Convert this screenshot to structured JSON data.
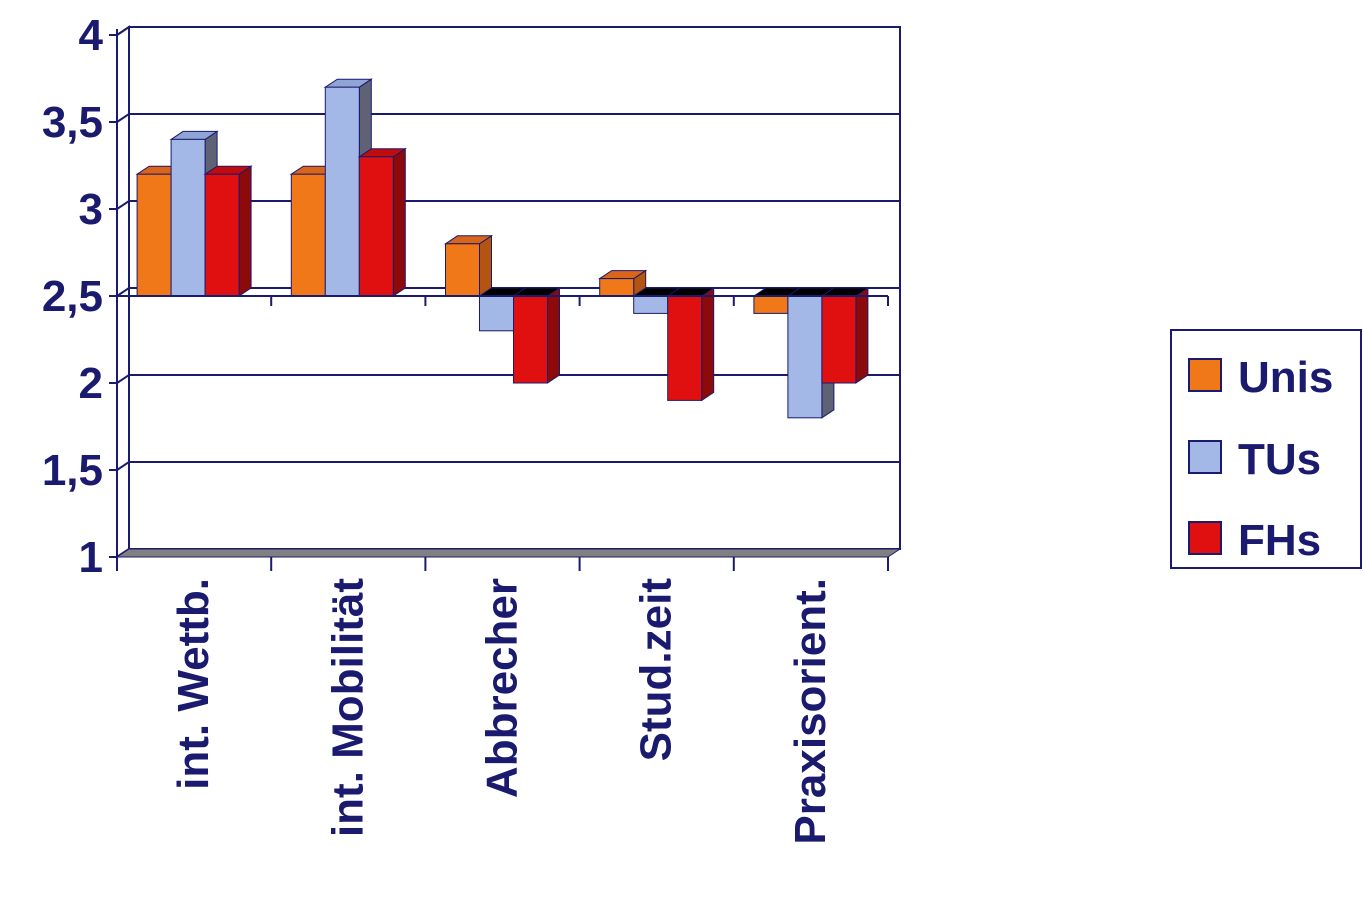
{
  "chart_data": {
    "type": "bar",
    "categories": [
      "int. Wettb.",
      "int. Mobilität",
      "Abbrecher",
      "Stud.zeit",
      "Praxisorient."
    ],
    "baseline": 2.5,
    "ylim": [
      1,
      4
    ],
    "yticks": [
      "1",
      "1,5",
      "2",
      "2,5",
      "3",
      "3,5",
      "4"
    ],
    "ytick_values": [
      1,
      1.5,
      2,
      2.5,
      3,
      3.5,
      4
    ],
    "series": [
      {
        "name": "Unis",
        "values": [
          3.2,
          3.2,
          2.8,
          2.6,
          2.4
        ],
        "color": "#f07818",
        "dark": "#b35410",
        "top": "#d9651a"
      },
      {
        "name": "TUs",
        "values": [
          3.4,
          3.7,
          2.3,
          2.4,
          1.8
        ],
        "color": "#a3b8e6",
        "dark": "#5f6275",
        "top": "#8fa5d6"
      },
      {
        "name": "FHs",
        "values": [
          3.2,
          3.3,
          2.0,
          1.9,
          2.0
        ],
        "color": "#e01010",
        "dark": "#8c0a0a",
        "top": "#c00c0c"
      }
    ],
    "grid": true,
    "legend_position": "right",
    "colors": {
      "text": "#1a1a6e",
      "axis": "#1a1a6e",
      "floor": "#808080"
    }
  }
}
